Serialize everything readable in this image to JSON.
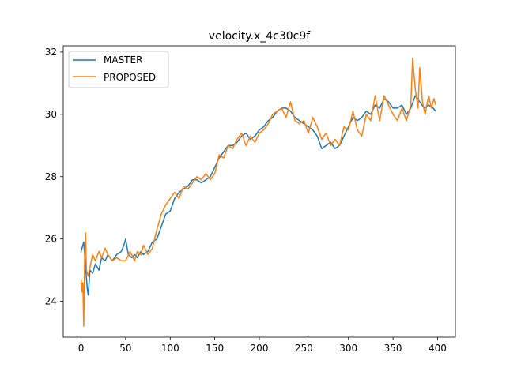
{
  "chart_data": {
    "type": "line",
    "title": "velocity.x_4c30c9f",
    "xlabel": "",
    "ylabel": "",
    "xlim": [
      -20,
      420
    ],
    "ylim": [
      22.85,
      32.2
    ],
    "xticks": [
      0,
      50,
      100,
      150,
      200,
      250,
      300,
      350,
      400
    ],
    "yticks": [
      24,
      26,
      28,
      30,
      32
    ],
    "legend_position": "top-left",
    "series": [
      {
        "name": "MASTER",
        "color": "#1f77b4",
        "points": [
          [
            0,
            25.6
          ],
          [
            3,
            25.9
          ],
          [
            5,
            25.1
          ],
          [
            7,
            24.4
          ],
          [
            8,
            24.2
          ],
          [
            10,
            25.0
          ],
          [
            13,
            24.9
          ],
          [
            16,
            25.2
          ],
          [
            20,
            25.0
          ],
          [
            23,
            25.4
          ],
          [
            27,
            25.3
          ],
          [
            30,
            25.5
          ],
          [
            35,
            25.3
          ],
          [
            40,
            25.5
          ],
          [
            45,
            25.6
          ],
          [
            48,
            25.8
          ],
          [
            50,
            26.0
          ],
          [
            53,
            25.5
          ],
          [
            57,
            25.4
          ],
          [
            60,
            25.5
          ],
          [
            63,
            25.4
          ],
          [
            67,
            25.6
          ],
          [
            70,
            25.5
          ],
          [
            75,
            25.6
          ],
          [
            80,
            25.9
          ],
          [
            85,
            26.0
          ],
          [
            90,
            26.4
          ],
          [
            95,
            26.8
          ],
          [
            100,
            26.9
          ],
          [
            105,
            27.3
          ],
          [
            110,
            27.5
          ],
          [
            115,
            27.6
          ],
          [
            120,
            27.7
          ],
          [
            125,
            27.9
          ],
          [
            130,
            27.9
          ],
          [
            135,
            27.8
          ],
          [
            140,
            27.9
          ],
          [
            145,
            28.0
          ],
          [
            150,
            28.3
          ],
          [
            155,
            28.6
          ],
          [
            160,
            28.8
          ],
          [
            165,
            29.0
          ],
          [
            170,
            29.0
          ],
          [
            175,
            29.1
          ],
          [
            180,
            29.3
          ],
          [
            185,
            29.4
          ],
          [
            190,
            29.2
          ],
          [
            195,
            29.3
          ],
          [
            200,
            29.5
          ],
          [
            205,
            29.6
          ],
          [
            210,
            29.8
          ],
          [
            215,
            29.9
          ],
          [
            220,
            30.1
          ],
          [
            225,
            30.2
          ],
          [
            230,
            30.2
          ],
          [
            235,
            30.1
          ],
          [
            240,
            29.9
          ],
          [
            245,
            29.8
          ],
          [
            250,
            29.7
          ],
          [
            255,
            29.6
          ],
          [
            260,
            29.5
          ],
          [
            265,
            29.3
          ],
          [
            270,
            28.9
          ],
          [
            275,
            29.0
          ],
          [
            280,
            29.1
          ],
          [
            285,
            28.9
          ],
          [
            290,
            29.0
          ],
          [
            295,
            29.3
          ],
          [
            300,
            29.6
          ],
          [
            305,
            29.9
          ],
          [
            310,
            29.8
          ],
          [
            315,
            29.9
          ],
          [
            320,
            30.1
          ],
          [
            325,
            30.0
          ],
          [
            330,
            30.3
          ],
          [
            335,
            30.2
          ],
          [
            340,
            30.5
          ],
          [
            345,
            30.4
          ],
          [
            350,
            30.2
          ],
          [
            355,
            30.2
          ],
          [
            360,
            30.3
          ],
          [
            365,
            30.0
          ],
          [
            370,
            30.2
          ],
          [
            375,
            30.6
          ],
          [
            380,
            30.4
          ],
          [
            385,
            30.2
          ],
          [
            390,
            30.3
          ],
          [
            395,
            30.2
          ],
          [
            398,
            30.1
          ]
        ]
      },
      {
        "name": "PROPOSED",
        "color": "#ff7f0e",
        "points": [
          [
            0,
            24.7
          ],
          [
            1,
            24.3
          ],
          [
            2,
            24.6
          ],
          [
            3,
            23.2
          ],
          [
            4,
            25.5
          ],
          [
            5,
            26.2
          ],
          [
            6,
            25.0
          ],
          [
            8,
            24.8
          ],
          [
            10,
            25.1
          ],
          [
            13,
            25.5
          ],
          [
            16,
            25.3
          ],
          [
            20,
            25.6
          ],
          [
            23,
            25.4
          ],
          [
            27,
            25.7
          ],
          [
            30,
            25.5
          ],
          [
            35,
            25.3
          ],
          [
            40,
            25.4
          ],
          [
            45,
            25.3
          ],
          [
            50,
            25.3
          ],
          [
            55,
            25.6
          ],
          [
            60,
            25.3
          ],
          [
            63,
            25.6
          ],
          [
            67,
            25.5
          ],
          [
            70,
            25.8
          ],
          [
            75,
            25.5
          ],
          [
            80,
            25.7
          ],
          [
            85,
            26.3
          ],
          [
            90,
            26.8
          ],
          [
            95,
            27.1
          ],
          [
            100,
            27.3
          ],
          [
            105,
            27.5
          ],
          [
            110,
            27.3
          ],
          [
            115,
            27.7
          ],
          [
            120,
            27.6
          ],
          [
            125,
            27.8
          ],
          [
            130,
            28.0
          ],
          [
            135,
            27.9
          ],
          [
            140,
            28.1
          ],
          [
            145,
            27.9
          ],
          [
            150,
            28.1
          ],
          [
            155,
            28.7
          ],
          [
            160,
            28.6
          ],
          [
            165,
            29.0
          ],
          [
            170,
            28.9
          ],
          [
            175,
            29.2
          ],
          [
            180,
            29.4
          ],
          [
            185,
            29.0
          ],
          [
            190,
            29.3
          ],
          [
            195,
            29.1
          ],
          [
            200,
            29.4
          ],
          [
            205,
            29.5
          ],
          [
            210,
            29.7
          ],
          [
            215,
            30.0
          ],
          [
            220,
            30.1
          ],
          [
            225,
            30.2
          ],
          [
            230,
            29.9
          ],
          [
            235,
            30.4
          ],
          [
            240,
            29.8
          ],
          [
            245,
            29.7
          ],
          [
            250,
            29.8
          ],
          [
            255,
            29.4
          ],
          [
            260,
            29.9
          ],
          [
            265,
            29.6
          ],
          [
            270,
            29.2
          ],
          [
            275,
            29.4
          ],
          [
            280,
            29.0
          ],
          [
            285,
            29.2
          ],
          [
            290,
            29.0
          ],
          [
            295,
            29.6
          ],
          [
            300,
            29.5
          ],
          [
            305,
            30.1
          ],
          [
            310,
            29.5
          ],
          [
            315,
            29.3
          ],
          [
            320,
            30.0
          ],
          [
            325,
            29.8
          ],
          [
            330,
            30.6
          ],
          [
            335,
            29.8
          ],
          [
            340,
            30.6
          ],
          [
            345,
            30.3
          ],
          [
            350,
            30.0
          ],
          [
            355,
            29.8
          ],
          [
            360,
            30.2
          ],
          [
            365,
            29.8
          ],
          [
            370,
            30.3
          ],
          [
            372,
            31.8
          ],
          [
            375,
            30.8
          ],
          [
            378,
            30.2
          ],
          [
            380,
            31.5
          ],
          [
            383,
            30.4
          ],
          [
            386,
            30.0
          ],
          [
            390,
            30.6
          ],
          [
            393,
            30.2
          ],
          [
            396,
            30.5
          ],
          [
            398,
            30.3
          ]
        ]
      }
    ]
  }
}
